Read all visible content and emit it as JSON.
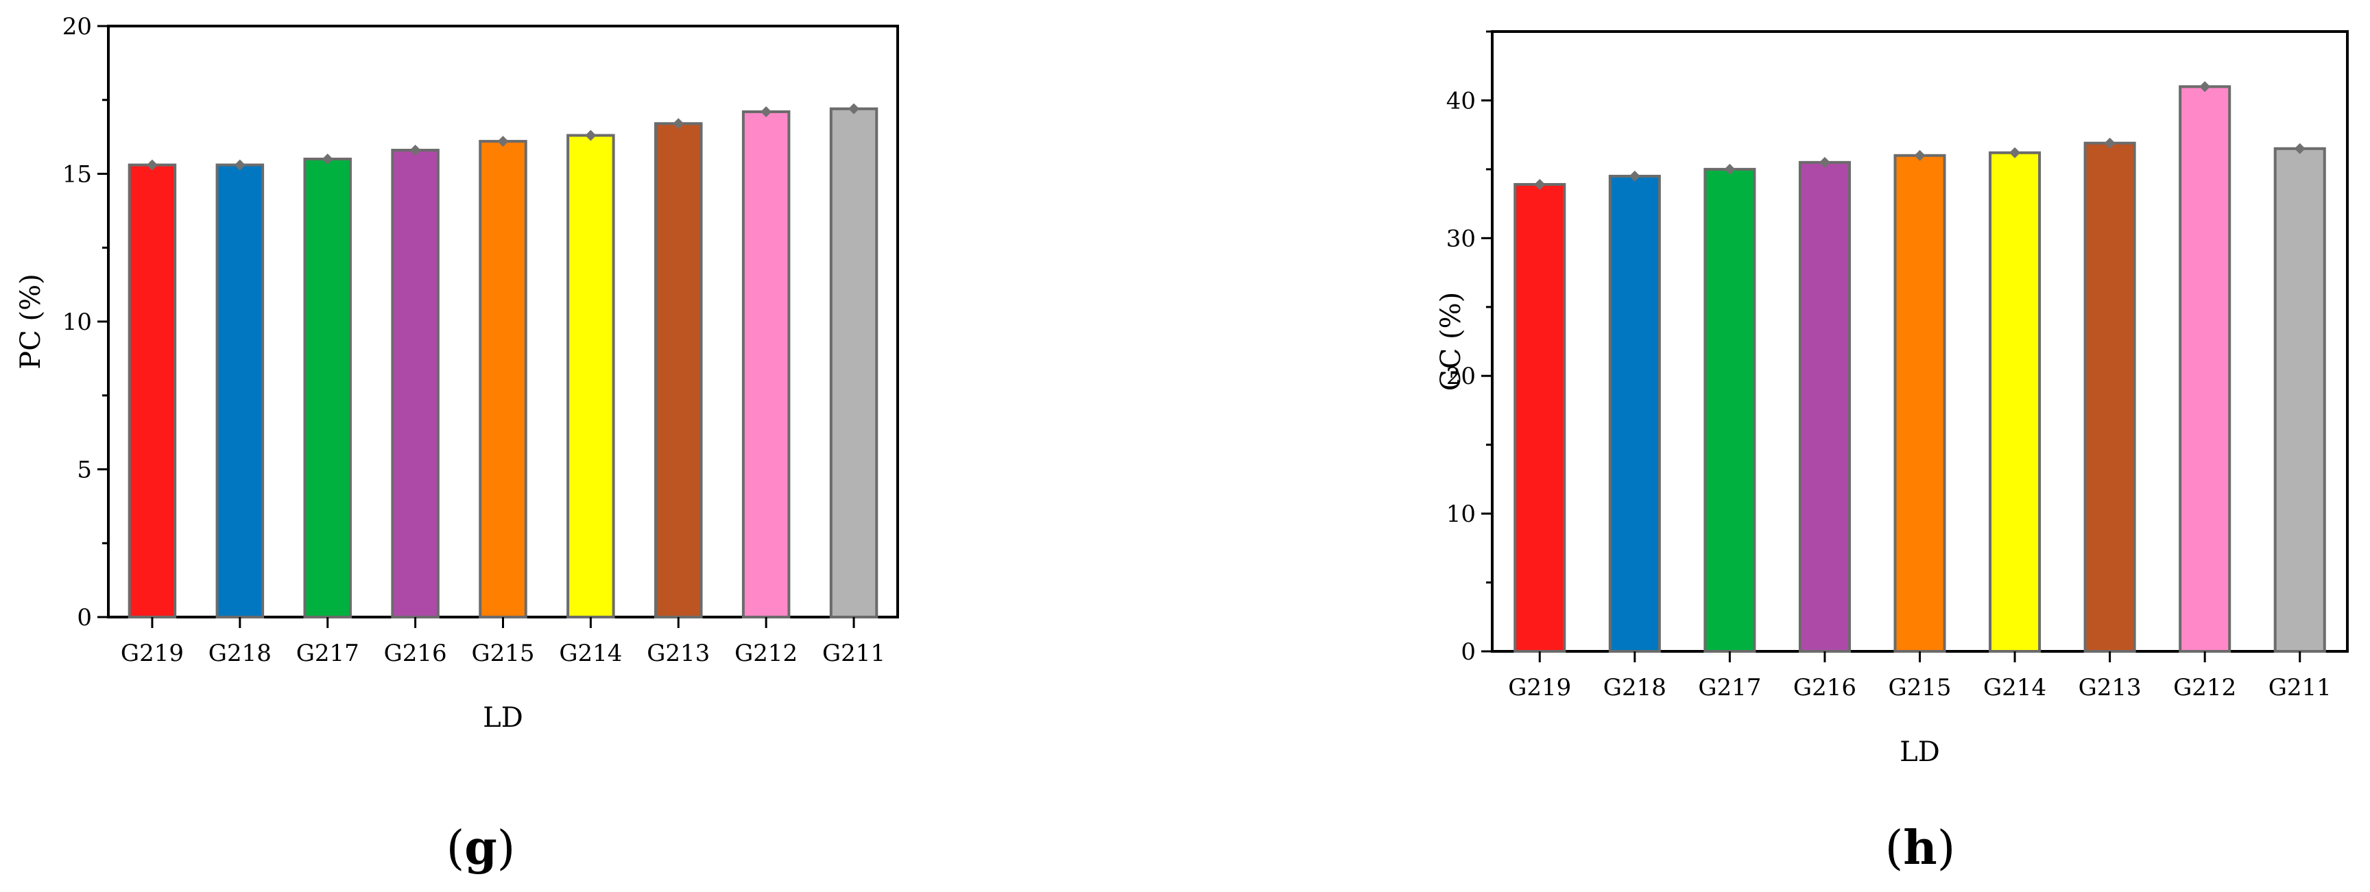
{
  "chart_data": [
    {
      "type": "bar",
      "panel_label_open": "(",
      "panel_label_letter": "g",
      "panel_label_close": ")",
      "xlabel": "LD",
      "ylabel": "PC (%)",
      "ylim": [
        0,
        20
      ],
      "yticks": [
        0,
        5,
        10,
        15,
        20
      ],
      "categories": [
        "G219",
        "G218",
        "G217",
        "G216",
        "G215",
        "G214",
        "G213",
        "G212",
        "G211"
      ],
      "values": [
        15.3,
        15.3,
        15.5,
        15.8,
        16.1,
        16.3,
        16.7,
        17.1,
        17.2
      ],
      "colors": [
        "#ff1a1a",
        "#0077c0",
        "#00b140",
        "#ad4aa7",
        "#ff7f00",
        "#ffff00",
        "#bd5523",
        "#ff88c8",
        "#b3b3b3"
      ],
      "marker_color": "#707070",
      "grid": false,
      "legend": "none"
    },
    {
      "type": "bar",
      "panel_label_open": "(",
      "panel_label_letter": "h",
      "panel_label_close": ")",
      "xlabel": "LD",
      "ylabel": "GC (%)",
      "ylim": [
        0,
        45
      ],
      "yticks": [
        0,
        10,
        20,
        30,
        40
      ],
      "categories": [
        "G219",
        "G218",
        "G217",
        "G216",
        "G215",
        "G214",
        "G213",
        "G212",
        "G211"
      ],
      "values": [
        33.9,
        34.5,
        35.0,
        35.5,
        36.0,
        36.2,
        36.9,
        41.0,
        36.5
      ],
      "colors": [
        "#ff1a1a",
        "#0077c0",
        "#00b140",
        "#ad4aa7",
        "#ff7f00",
        "#ffff00",
        "#bd5523",
        "#ff88c8",
        "#b3b3b3"
      ],
      "marker_color": "#707070",
      "grid": false,
      "legend": "none"
    }
  ]
}
